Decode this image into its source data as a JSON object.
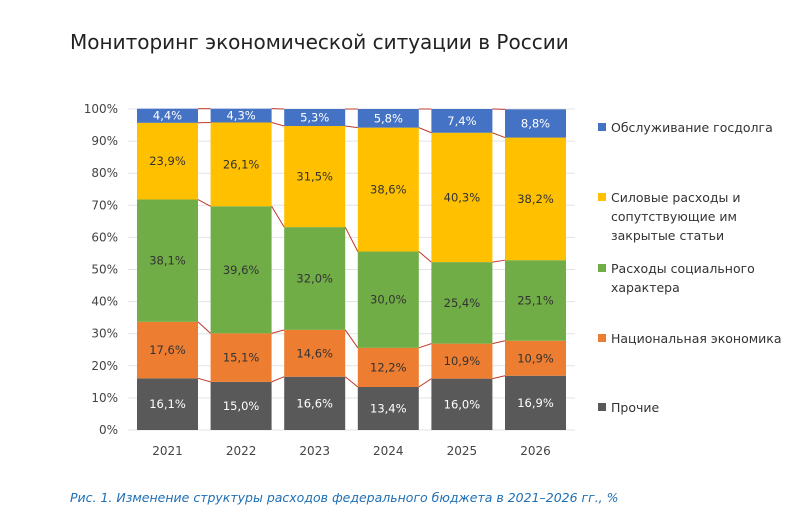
{
  "title": "Мониторинг экономической ситуации в России",
  "caption": "Рис. 1. Изменение структуры расходов федерального бюджета в 2021–2026 гг., %",
  "chart_data": {
    "type": "bar",
    "stacked": true,
    "categories": [
      "2021",
      "2022",
      "2023",
      "2024",
      "2025",
      "2026"
    ],
    "ylim": [
      0,
      100
    ],
    "yticks": [
      "0%",
      "10%",
      "20%",
      "30%",
      "40%",
      "50%",
      "60%",
      "70%",
      "80%",
      "90%",
      "100%"
    ],
    "grid": true,
    "legend_position": "right",
    "connector_lines_color": "#c0392b",
    "series": [
      {
        "name": "Прочие",
        "color": "#595959",
        "values": [
          16.1,
          15.0,
          16.6,
          13.4,
          16.0,
          16.9
        ],
        "labels": [
          "16,1%",
          "15,0%",
          "16,6%",
          "13,4%",
          "16,0%",
          "16,9%"
        ]
      },
      {
        "name": "Национальная экономика",
        "color": "#ed7d31",
        "values": [
          17.6,
          15.1,
          14.6,
          12.2,
          10.9,
          10.9
        ],
        "labels": [
          "17,6%",
          "15,1%",
          "14,6%",
          "12,2%",
          "10,9%",
          "10,9%"
        ]
      },
      {
        "name": "Расходы социального характера",
        "color": "#70ad47",
        "values": [
          38.1,
          39.6,
          32.0,
          30.0,
          25.4,
          25.1
        ],
        "labels": [
          "38,1%",
          "39,6%",
          "32,0%",
          "30,0%",
          "25,4%",
          "25,1%"
        ]
      },
      {
        "name": "Силовые расходы и сопутствующие им закрытые статьи",
        "color": "#ffc000",
        "values": [
          23.9,
          26.1,
          31.5,
          38.6,
          40.3,
          38.2
        ],
        "labels": [
          "23,9%",
          "26,1%",
          "31,5%",
          "38,6%",
          "40,3%",
          "38,2%"
        ]
      },
      {
        "name": "Обслуживание госдолга",
        "color": "#4472c4",
        "values": [
          4.4,
          4.3,
          5.3,
          5.8,
          7.4,
          8.8
        ],
        "labels": [
          "4,4%",
          "4,3%",
          "5,3%",
          "5,8%",
          "7,4%",
          "8,8%"
        ]
      }
    ]
  }
}
